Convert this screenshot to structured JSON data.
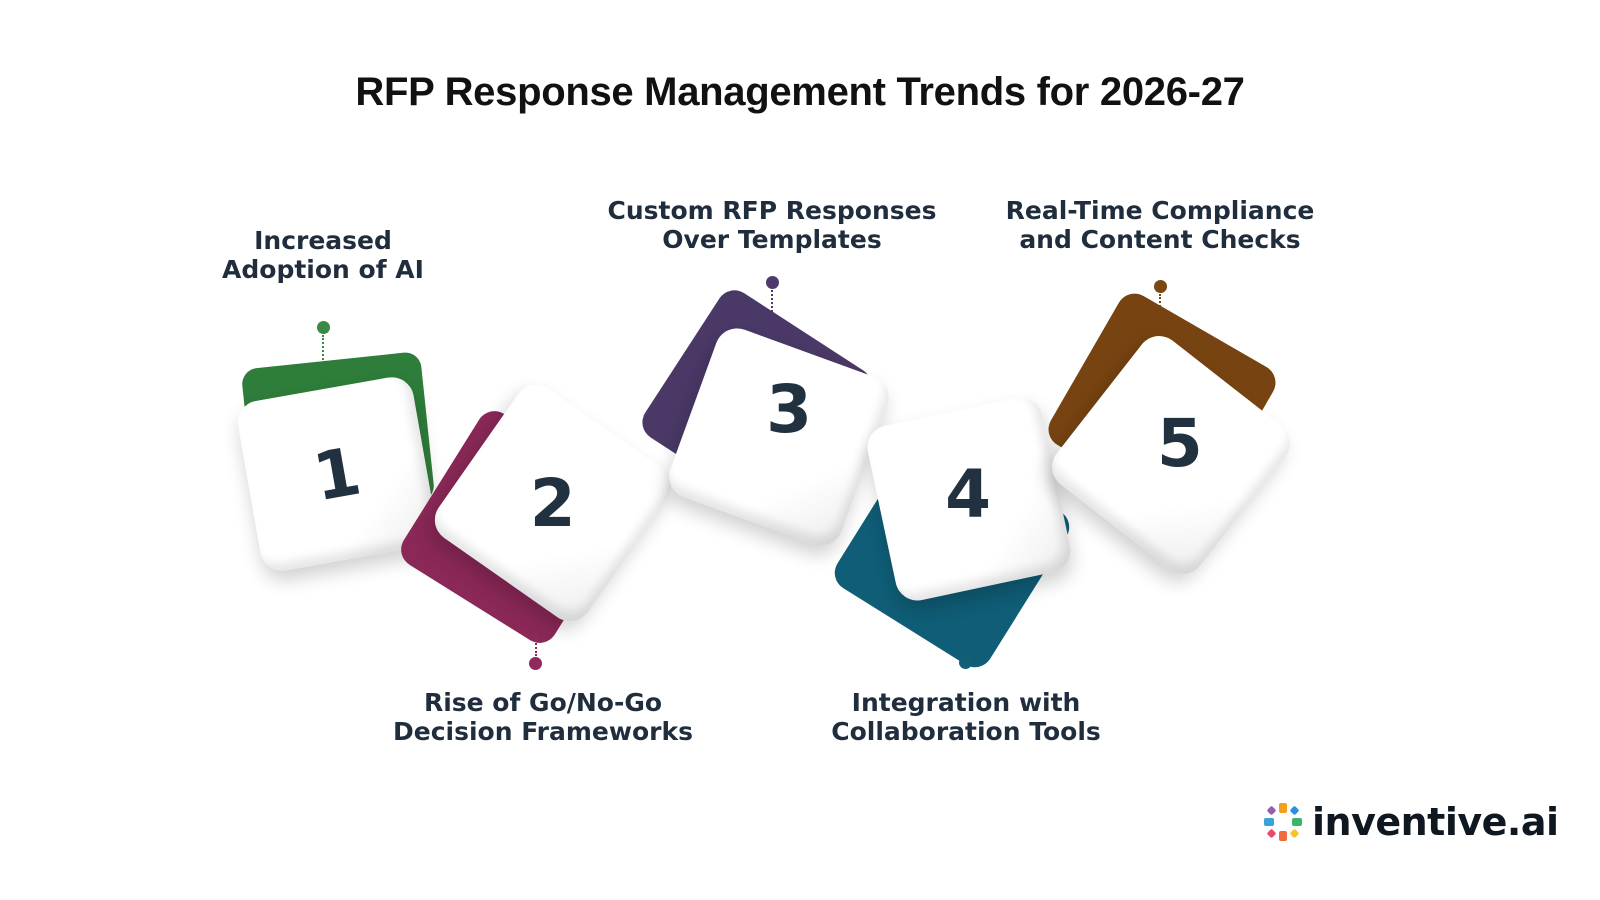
{
  "title": "RFP Response Management Trends for 2026-27",
  "steps": [
    {
      "number": "1",
      "label_line1": "Increased",
      "label_line2": "Adoption of AI",
      "color": "#3a8a45"
    },
    {
      "number": "2",
      "label_line1": "Rise of Go/No-Go",
      "label_line2": "Decision Frameworks",
      "color": "#8e2a5c"
    },
    {
      "number": "3",
      "label_line1": "Custom RFP Responses",
      "label_line2": "Over Templates",
      "color": "#4e3b6b"
    },
    {
      "number": "4",
      "label_line1": "Integration with",
      "label_line2": "Collaboration Tools",
      "color": "#135f78"
    },
    {
      "number": "5",
      "label_line1": "Real-Time Compliance",
      "label_line2": "and Content Checks",
      "color": "#7a4612"
    }
  ],
  "logo": {
    "text": "inventive.ai",
    "icon": "pinwheel-logo-icon"
  }
}
